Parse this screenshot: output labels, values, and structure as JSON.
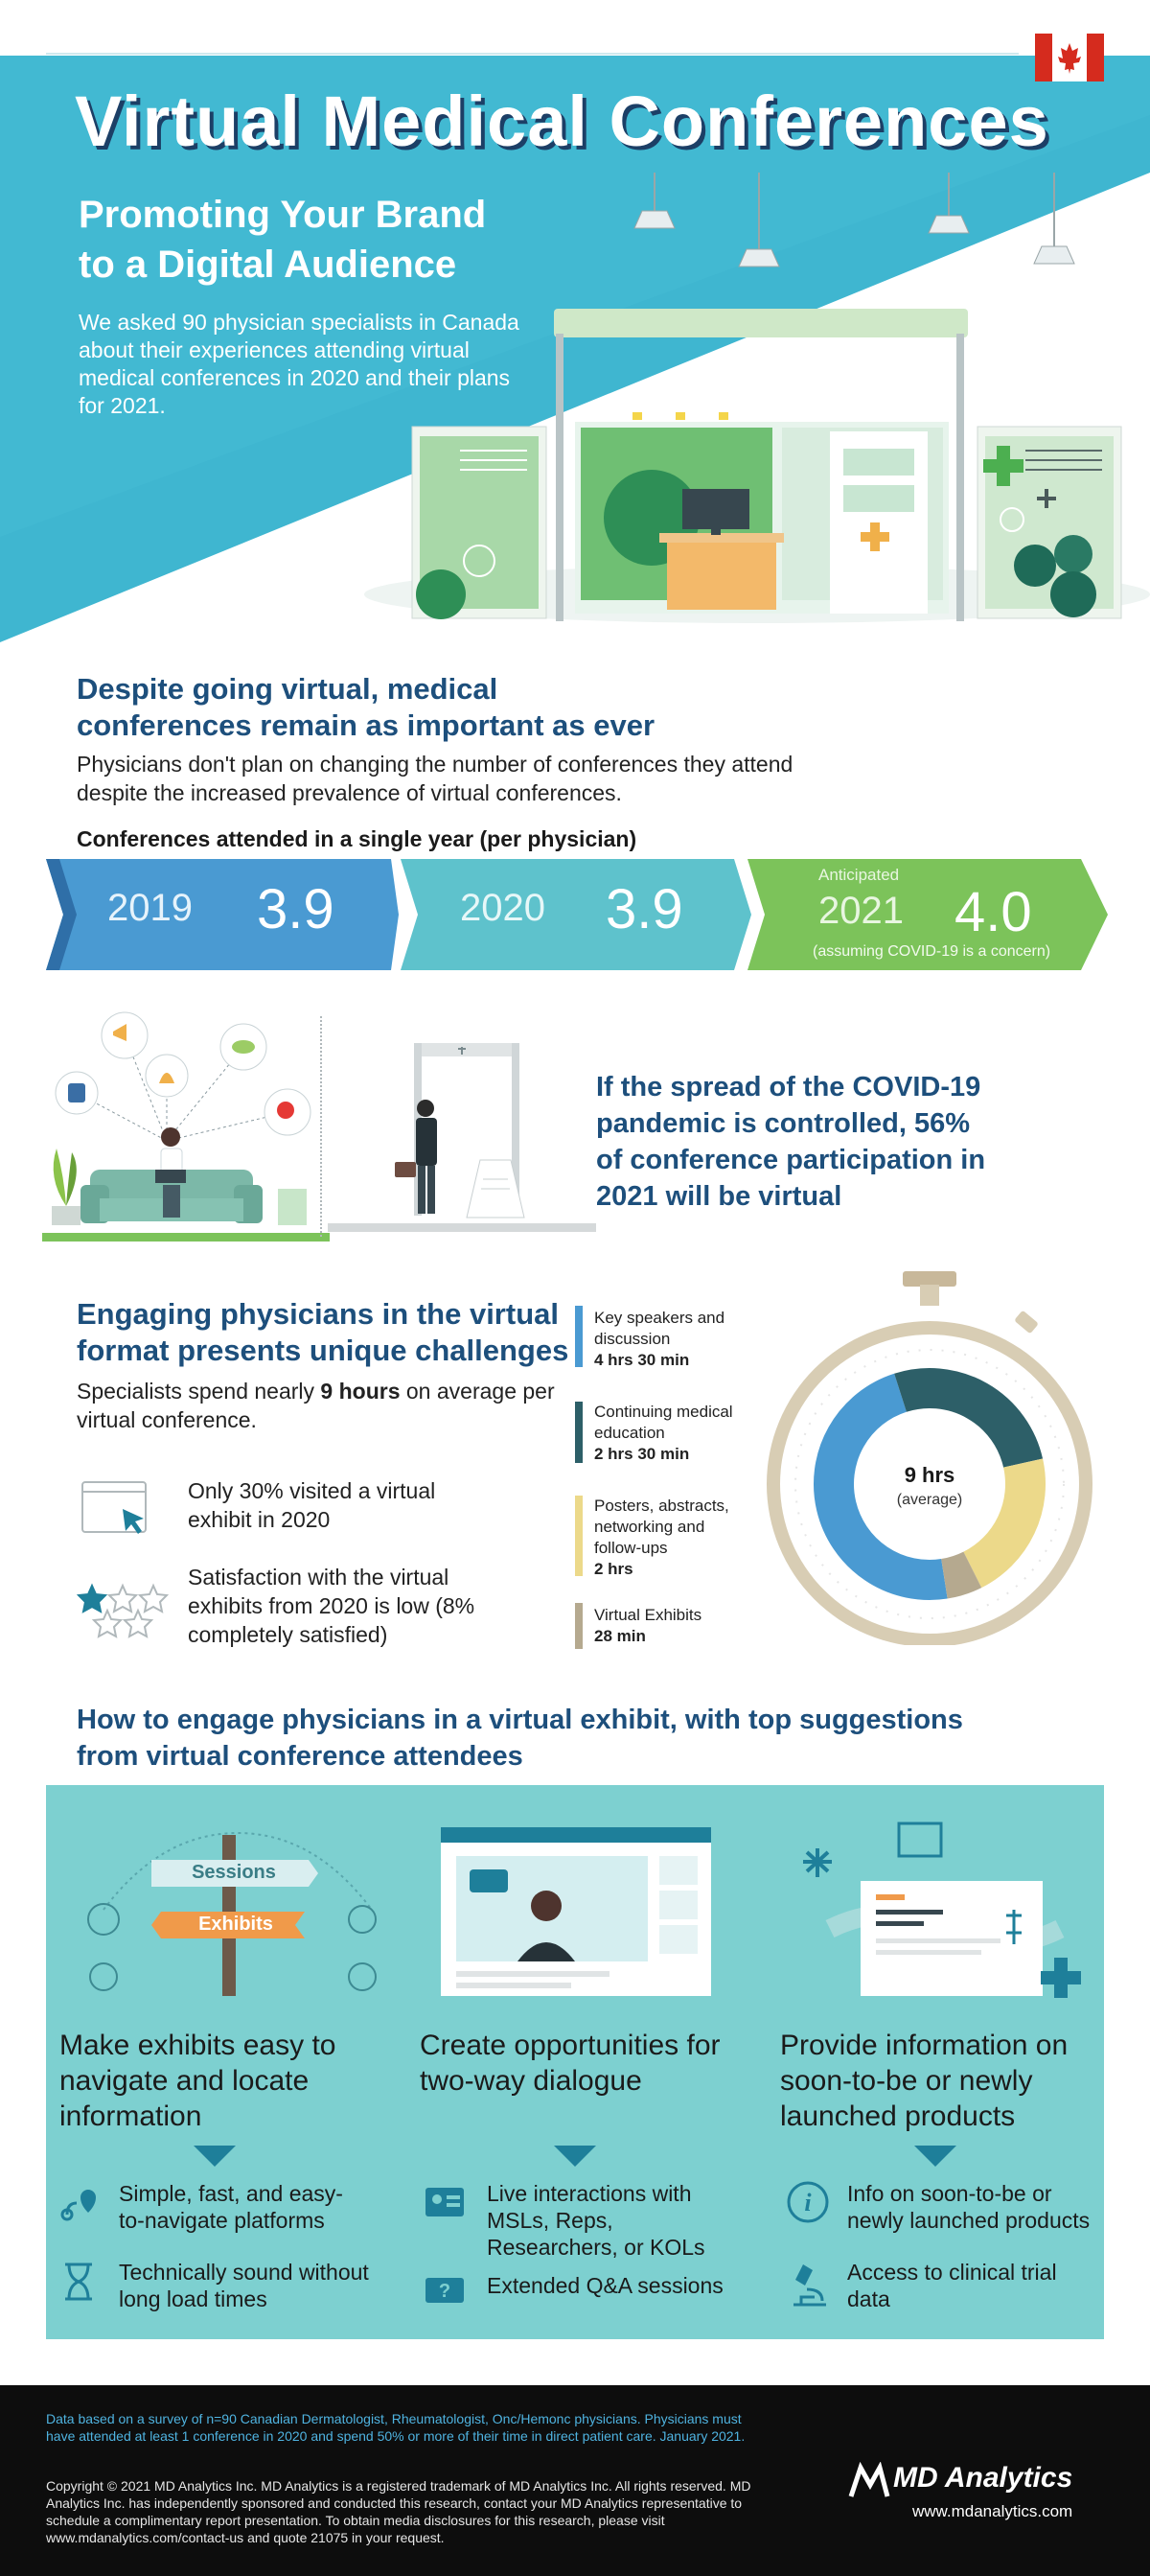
{
  "hero": {
    "title": "Virtual Medical Conferences",
    "subtitle_line1": "Promoting Your Brand",
    "subtitle_line2": "to a Digital Audience",
    "description": "We asked 90 physician specialists in Canada about their experiences attending virtual medical conferences in 2020 and their plans for 2021.",
    "flag": "canada-flag"
  },
  "section1": {
    "heading_line1": "Despite going virtual, medical",
    "heading_line2": "conferences remain as important as ever",
    "body": "Physicians don't plan on changing the number of conferences they attend despite the increased prevalence of virtual conferences.",
    "chart_title": "Conferences attended in a single year (per physician)"
  },
  "chart_data": {
    "type": "table",
    "title": "Conferences attended in a single year (per physician)",
    "categories": [
      "2019",
      "2020",
      "2021"
    ],
    "values": [
      3.9,
      3.9,
      4.0
    ],
    "labels": [
      "3.9",
      "3.9",
      "4.0"
    ],
    "annotations": {
      "anticipated": "Anticipated",
      "note": "(assuming COVID-19 is a concern)"
    },
    "colors": [
      "#4a9ad2",
      "#5ec2cc",
      "#7cc35a"
    ]
  },
  "section2": {
    "statement": "If the spread of the COVID-19 pandemic is controlled, 56% of conference participation in 2021 will be virtual"
  },
  "section3": {
    "heading_line1": "Engaging physicians in the virtual",
    "heading_line2": "format presents unique challenges",
    "body_pre": "Specialists spend nearly ",
    "body_bold": "9 hours",
    "body_post": " on average per virtual conference.",
    "stat1": "Only 30% visited a virtual exhibit in 2020",
    "stat2": "Satisfaction with the virtual exhibits from 2020 is low (8% completely satisfied)",
    "legend": [
      {
        "label": "Key speakers and discussion",
        "value": "4 hrs 30 min",
        "color": "#4a9ad2",
        "minutes": 270
      },
      {
        "label": "Continuing medical education",
        "value": "2 hrs 30 min",
        "color": "#2d5f68",
        "minutes": 150
      },
      {
        "label": "Posters, abstracts, networking and follow-ups",
        "value": "2 hrs",
        "color": "#ecd98a",
        "minutes": 120
      },
      {
        "label": "Virtual Exhibits",
        "value": "28 min",
        "color": "#b5a98f",
        "minutes": 28
      }
    ],
    "center_value": "9 hrs",
    "center_label": "(average)"
  },
  "section4": {
    "heading_line1": "How to engage physicians in a virtual exhibit, with top suggestions",
    "heading_line2": "from virtual conference attendees",
    "sign1": "Sessions",
    "sign2": "Exhibits",
    "col1": {
      "head": "Make exhibits easy to navigate and locate information",
      "item1": "Simple, fast, and easy-to-navigate platforms",
      "item2": "Technically sound without long load times"
    },
    "col2": {
      "head": "Create opportunities for two-way dialogue",
      "item1": "Live interactions with MSLs, Reps, Researchers, or KOLs",
      "item2": "Extended Q&A sessions"
    },
    "col3": {
      "head": "Provide information on soon-to-be or newly launched products",
      "item1": "Info on soon-to-be or newly launched products",
      "item2": "Access to clinical trial data"
    }
  },
  "footer": {
    "note": "Data based on a survey of n=90 Canadian Dermatologist, Rheumatologist, Onc/Hemonc physicians. Physicians must have attended at least 1 conference in 2020 and spend 50% or more of their time in direct patient care. January 2021.",
    "copyright": "Copyright © 2021 MD Analytics Inc. MD Analytics is a registered trademark of MD Analytics Inc. All rights reserved. MD Analytics Inc. has independently sponsored and conducted this research, contact your MD Analytics representative to schedule a complimentary report presentation. To obtain media disclosures for this research, please visit www.mdanalytics.com/contact-us and quote 21075 in your request.",
    "brand": "MD Analytics",
    "url": "www.mdanalytics.com"
  }
}
